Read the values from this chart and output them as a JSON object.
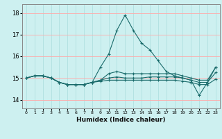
{
  "xlabel": "Humidex (Indice chaleur)",
  "ylabel": "",
  "bg_color": "#cdf0f0",
  "grid_color_major": "#ffaaaa",
  "grid_color_minor": "#aadddd",
  "line_color": "#1a6b6b",
  "x_ticks": [
    0,
    1,
    2,
    3,
    4,
    5,
    6,
    7,
    8,
    9,
    10,
    11,
    12,
    13,
    14,
    15,
    16,
    17,
    18,
    19,
    20,
    21,
    22,
    23
  ],
  "ylim": [
    13.6,
    18.4
  ],
  "xlim": [
    -0.5,
    23.5
  ],
  "yticks": [
    14,
    15,
    16,
    17,
    18
  ],
  "series": [
    [
      15.0,
      15.1,
      15.1,
      15.0,
      14.8,
      14.7,
      14.7,
      14.7,
      14.8,
      15.5,
      16.1,
      17.2,
      17.9,
      17.2,
      16.6,
      16.3,
      15.8,
      15.3,
      15.1,
      15.0,
      14.9,
      14.2,
      14.8,
      15.5
    ],
    [
      15.0,
      15.1,
      15.1,
      15.0,
      14.8,
      14.7,
      14.7,
      14.7,
      14.8,
      14.9,
      15.2,
      15.3,
      15.2,
      15.2,
      15.2,
      15.2,
      15.2,
      15.2,
      15.2,
      15.1,
      15.0,
      14.9,
      14.9,
      15.5
    ],
    [
      15.0,
      15.1,
      15.1,
      15.0,
      14.8,
      14.7,
      14.7,
      14.7,
      14.8,
      14.9,
      15.0,
      15.05,
      15.0,
      15.0,
      15.0,
      15.05,
      15.05,
      15.05,
      15.05,
      15.0,
      14.9,
      14.8,
      14.8,
      15.25
    ],
    [
      15.0,
      15.1,
      15.1,
      15.0,
      14.8,
      14.7,
      14.7,
      14.7,
      14.8,
      14.85,
      14.9,
      14.9,
      14.9,
      14.9,
      14.9,
      14.9,
      14.9,
      14.9,
      14.9,
      14.85,
      14.8,
      14.7,
      14.7,
      14.95
    ]
  ]
}
